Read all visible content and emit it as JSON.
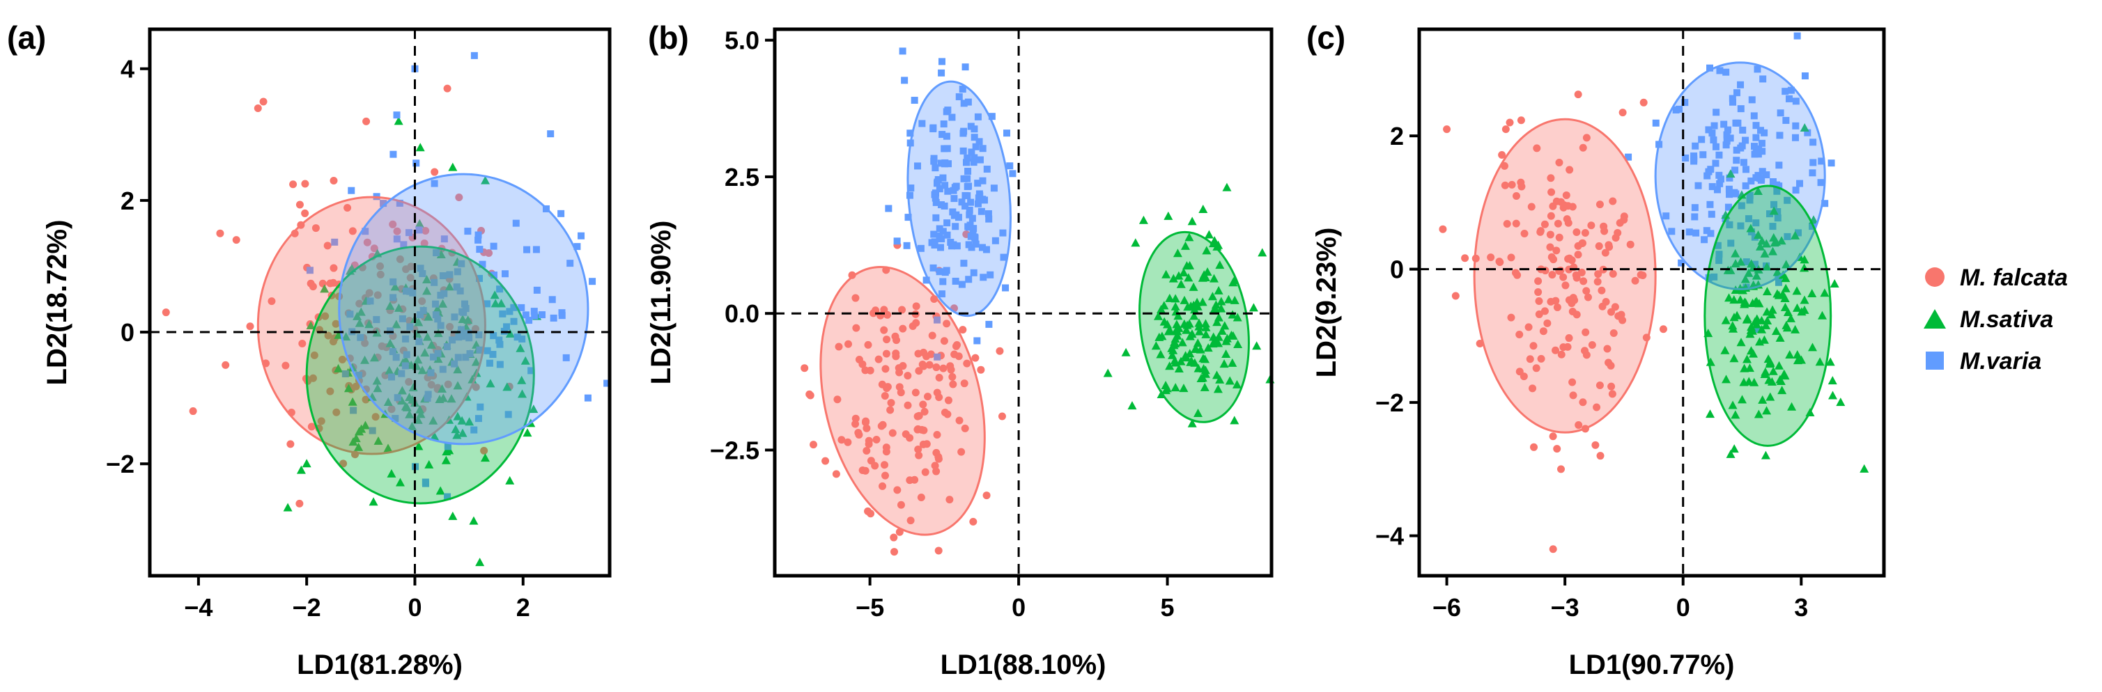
{
  "colors": {
    "falcata": "#F8766D",
    "sativa": "#00BA38",
    "varia": "#619CFF"
  },
  "legend": [
    {
      "key": "falcata",
      "label": "M. falcata",
      "shape": "circle"
    },
    {
      "key": "sativa",
      "label": "M.sativa",
      "shape": "triangle"
    },
    {
      "key": "varia",
      "label": "M.varia",
      "shape": "square"
    }
  ],
  "chart_data": [
    {
      "type": "scatter",
      "panel_label": "(a)",
      "xlabel": "LD1(81.28%)",
      "ylabel": "LD2(18.72%)",
      "xlim": [
        -4.9,
        3.6
      ],
      "ylim": [
        -3.7,
        4.6
      ],
      "xticks": [
        -4,
        -2,
        0,
        2
      ],
      "xtick_labels": [
        "−4",
        "−2",
        "0",
        "2"
      ],
      "yticks": [
        -2,
        0,
        2,
        4
      ],
      "ytick_labels": [
        "−2",
        "0",
        "2",
        "4"
      ],
      "ellipses": [
        {
          "group": "falcata",
          "cx": -0.8,
          "cy": 0.1,
          "rx": 2.1,
          "ry": 1.95,
          "angle": 0
        },
        {
          "group": "sativa",
          "cx": 0.1,
          "cy": -0.65,
          "rx": 2.1,
          "ry": 1.95,
          "angle": 0
        },
        {
          "group": "varia",
          "cx": 0.9,
          "cy": 0.35,
          "rx": 2.3,
          "ry": 2.05,
          "angle": 0
        }
      ],
      "series": [
        {
          "group": "falcata",
          "center": [
            -0.8,
            0.1
          ],
          "spread": [
            0.95,
            0.95
          ],
          "n": 130,
          "seed": 11,
          "extra": [
            [
              -2.8,
              3.5
            ],
            [
              -2.9,
              3.4
            ],
            [
              -4.6,
              0.3
            ],
            [
              -4.1,
              -1.2
            ],
            [
              -3.6,
              1.5
            ],
            [
              -3.3,
              1.4
            ],
            [
              -1.5,
              2.3
            ],
            [
              0.6,
              3.7
            ],
            [
              -0.9,
              3.2
            ],
            [
              -3.5,
              -0.5
            ],
            [
              -2.3,
              -1.7
            ]
          ]
        },
        {
          "group": "sativa",
          "center": [
            0.1,
            -0.65
          ],
          "spread": [
            0.95,
            0.9
          ],
          "n": 140,
          "seed": 23,
          "extra": [
            [
              1.2,
              -3.5
            ],
            [
              0.7,
              -2.8
            ],
            [
              -2.1,
              -2.1
            ],
            [
              -2.0,
              -2.0
            ],
            [
              0.7,
              2.5
            ],
            [
              -0.3,
              3.2
            ],
            [
              0.1,
              2.8
            ]
          ]
        },
        {
          "group": "varia",
          "center": [
            0.9,
            0.35
          ],
          "spread": [
            1.05,
            0.95
          ],
          "n": 140,
          "seed": 37,
          "extra": [
            [
              1.1,
              4.2
            ],
            [
              0.0,
              4.0
            ],
            [
              2.7,
              1.8
            ],
            [
              3.0,
              1.3
            ],
            [
              3.2,
              -1.0
            ],
            [
              0.6,
              -2.5
            ],
            [
              0.2,
              -2.3
            ],
            [
              -0.4,
              2.7
            ]
          ]
        }
      ]
    },
    {
      "type": "scatter",
      "panel_label": "(b)",
      "xlabel": "LD1(88.10%)",
      "ylabel": "LD2(11.90%)",
      "xlim": [
        -8.2,
        8.5
      ],
      "ylim": [
        -4.8,
        5.2
      ],
      "xticks": [
        -5,
        0,
        5
      ],
      "xtick_labels": [
        "−5",
        "0",
        "5"
      ],
      "yticks": [
        -2.5,
        0,
        2.5,
        5
      ],
      "ytick_labels": [
        "−2.5",
        "0.0",
        "2.5",
        "5.0"
      ],
      "ellipses": [
        {
          "group": "falcata",
          "cx": -3.9,
          "cy": -1.6,
          "rx": 2.6,
          "ry": 2.5,
          "angle": -14
        },
        {
          "group": "varia",
          "cx": -2.0,
          "cy": 2.1,
          "rx": 1.7,
          "ry": 2.15,
          "angle": -5
        },
        {
          "group": "sativa",
          "cx": 5.9,
          "cy": -0.25,
          "rx": 1.8,
          "ry": 1.75,
          "angle": -8
        }
      ],
      "series": [
        {
          "group": "falcata",
          "center": [
            -3.9,
            -1.6
          ],
          "spread": [
            1.15,
            1.15
          ],
          "n": 150,
          "seed": 51,
          "extra": [
            [
              -4.2,
              -4.1
            ],
            [
              -4.0,
              -4.0
            ],
            [
              -7.2,
              -1.0
            ],
            [
              -7.0,
              -1.5
            ],
            [
              -6.9,
              -2.4
            ],
            [
              -6.5,
              -2.7
            ],
            [
              -5.6,
              0.7
            ],
            [
              -2.1,
              -0.6
            ]
          ]
        },
        {
          "group": "varia",
          "center": [
            -2.0,
            2.1
          ],
          "spread": [
            0.75,
            1.0
          ],
          "n": 150,
          "seed": 63,
          "extra": [
            [
              -3.9,
              4.8
            ],
            [
              -2.6,
              4.4
            ],
            [
              -0.4,
              3.3
            ],
            [
              -0.3,
              2.7
            ],
            [
              -1.4,
              -0.5
            ],
            [
              -1.0,
              -0.2
            ],
            [
              -3.5,
              3.9
            ]
          ]
        },
        {
          "group": "sativa",
          "center": [
            5.9,
            -0.25
          ],
          "spread": [
            0.8,
            0.8
          ],
          "n": 150,
          "seed": 77,
          "extra": [
            [
              3.0,
              -1.1
            ],
            [
              7.0,
              2.3
            ],
            [
              6.2,
              1.9
            ],
            [
              8.0,
              -0.6
            ],
            [
              7.9,
              0.1
            ],
            [
              4.2,
              1.7
            ]
          ]
        }
      ]
    },
    {
      "type": "scatter",
      "panel_label": "(c)",
      "xlabel": "LD1(90.77%)",
      "ylabel": "LD2(9.23%)",
      "xlim": [
        -6.7,
        5.1
      ],
      "ylim": [
        -4.6,
        3.6
      ],
      "xticks": [
        -6,
        -3,
        0,
        3
      ],
      "xtick_labels": [
        "−6",
        "−3",
        "0",
        "3"
      ],
      "yticks": [
        -4,
        -2,
        0,
        2
      ],
      "ytick_labels": [
        "−4",
        "−2",
        "0",
        "2"
      ],
      "ellipses": [
        {
          "group": "falcata",
          "cx": -3.0,
          "cy": -0.1,
          "rx": 2.3,
          "ry": 2.35,
          "angle": 0
        },
        {
          "group": "varia",
          "cx": 1.45,
          "cy": 1.4,
          "rx": 2.15,
          "ry": 1.7,
          "angle": 0
        },
        {
          "group": "sativa",
          "cx": 2.15,
          "cy": -0.7,
          "rx": 1.6,
          "ry": 1.95,
          "angle": 0
        }
      ],
      "series": [
        {
          "group": "falcata",
          "center": [
            -3.0,
            -0.1
          ],
          "spread": [
            1.05,
            1.05
          ],
          "n": 160,
          "seed": 91,
          "extra": [
            [
              -6.0,
              2.1
            ],
            [
              -6.1,
              0.6
            ],
            [
              -3.3,
              -4.2
            ],
            [
              -3.1,
              -3.0
            ],
            [
              -4.4,
              2.2
            ],
            [
              -4.5,
              2.1
            ],
            [
              -1.0,
              2.5
            ],
            [
              -2.1,
              -2.8
            ],
            [
              -0.5,
              -0.9
            ]
          ]
        },
        {
          "group": "varia",
          "center": [
            1.45,
            1.4
          ],
          "spread": [
            0.95,
            0.75
          ],
          "n": 150,
          "seed": 103,
          "extra": [
            [
              2.9,
              3.5
            ],
            [
              3.1,
              2.9
            ],
            [
              3.3,
              1.6
            ],
            [
              -0.1,
              2.4
            ],
            [
              3.5,
              1.3
            ]
          ]
        },
        {
          "group": "sativa",
          "center": [
            2.15,
            -0.7
          ],
          "spread": [
            0.7,
            0.85
          ],
          "n": 150,
          "seed": 117,
          "extra": [
            [
              4.6,
              -3.0
            ],
            [
              2.1,
              -2.8
            ],
            [
              1.3,
              -2.7
            ],
            [
              4.0,
              -2.0
            ],
            [
              3.8,
              -1.9
            ],
            [
              0.7,
              -1.4
            ]
          ]
        }
      ]
    }
  ]
}
